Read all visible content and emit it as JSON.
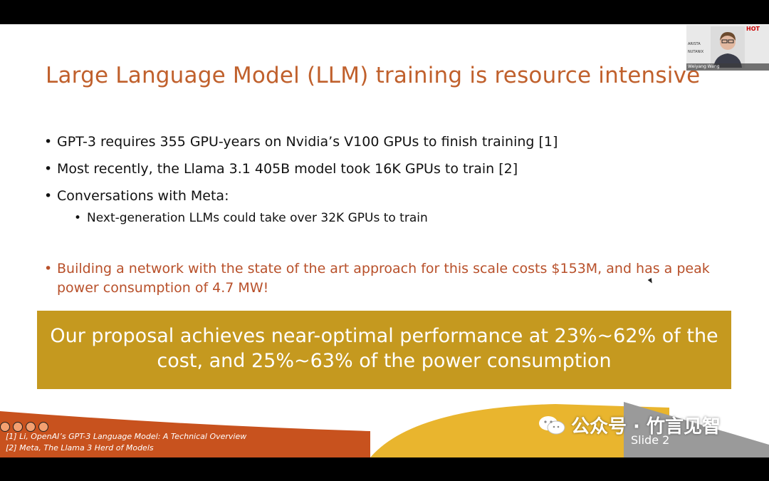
{
  "slide": {
    "title": "Large Language Model (LLM) training is resource intensive",
    "bullets": [
      {
        "text": "GPT-3 requires 355 GPU-years on Nvidia’s V100 GPUs to finish training [1]"
      },
      {
        "text": "Most recently, the Llama 3.1 405B model took 16K GPUs to train [2]"
      },
      {
        "text": "Conversations with Meta:"
      }
    ],
    "sub_bullet": "Next-generation LLMs could take over 32K GPUs to train",
    "highlight_bullet": "Building a network with the state of the art approach for this scale costs $153M, and has a peak power consumption of 4.7 MW!",
    "banner": {
      "line1": "Our proposal achieves near-optimal performance at 23%~62% of the",
      "line2": "cost, and 25%~63% of the power consumption"
    },
    "references": [
      "[1] Li, OpenAI’s GPT-3 Language Model: A Technical Overview",
      "[2] Meta, The Llama 3 Herd of Models"
    ],
    "slide_number": "Slide 2"
  },
  "watermark": {
    "text": "公众号 · 竹言见智",
    "icon": "wechat-icon"
  },
  "webcam": {
    "speaker_name": "Weiyang Wang",
    "sponsor_left": [
      "ARISTA",
      "NUTANIX"
    ],
    "sponsor_right": "HOT"
  },
  "colors": {
    "title": "#c0602c",
    "highlight": "#b8502a",
    "banner": "#c5991f",
    "footer_orange": "#c8521e",
    "footer_yellow": "#e9b52e",
    "footer_gray": "#9a9a9a"
  }
}
